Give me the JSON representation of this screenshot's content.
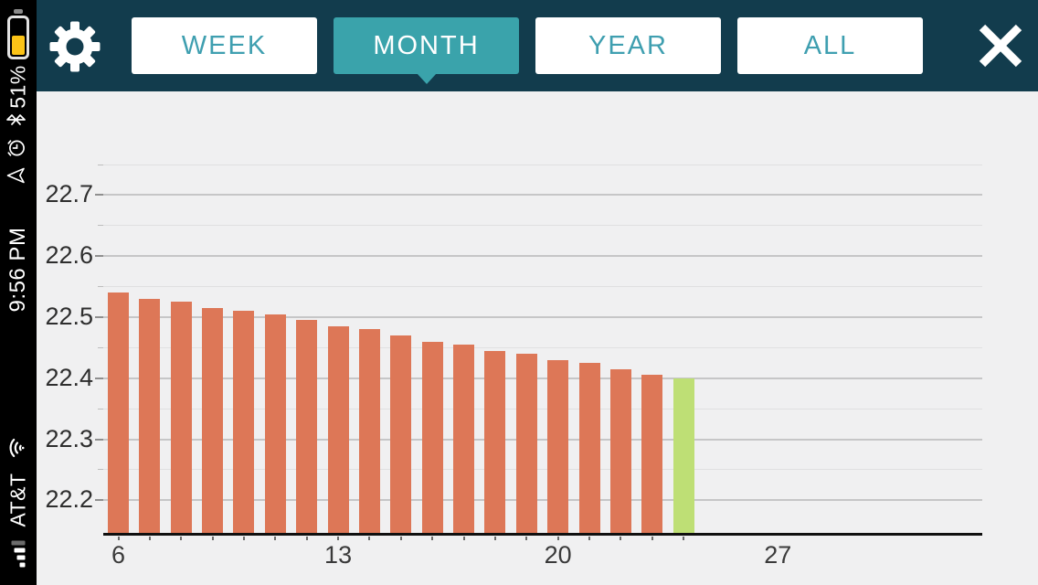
{
  "status_bar": {
    "battery_percent": "51%",
    "battery_fill_color": "#fcc417",
    "time": "9:56 PM",
    "carrier": "AT&T",
    "icons": [
      "battery-icon",
      "bluetooth-icon",
      "alarm-clock-icon",
      "location-arrow-icon",
      "wifi-icon",
      "signal-bars-icon"
    ],
    "signal_filled_bars": 3,
    "signal_total_bars": 4
  },
  "header": {
    "icons": [
      "settings-gear-icon",
      "close-icon"
    ],
    "colors": {
      "background": "#123c4d",
      "tab_text": "#3f9fb0",
      "tab_selected_bg": "#3aa3ab",
      "tab_bg": "#ffffff"
    },
    "tabs": [
      {
        "id": "week",
        "label": "WEEK",
        "selected": false
      },
      {
        "id": "month",
        "label": "MONTH",
        "selected": true
      },
      {
        "id": "year",
        "label": "YEAR",
        "selected": false
      },
      {
        "id": "all",
        "label": "ALL",
        "selected": false
      }
    ]
  },
  "chart_data": {
    "type": "bar",
    "title": "",
    "xlabel": "",
    "ylabel": "",
    "x": [
      6,
      7,
      8,
      9,
      10,
      11,
      12,
      13,
      14,
      15,
      16,
      17,
      18,
      19,
      20,
      21,
      22,
      23,
      24
    ],
    "values": [
      22.54,
      22.53,
      22.525,
      22.515,
      22.51,
      22.505,
      22.495,
      22.485,
      22.48,
      22.47,
      22.46,
      22.455,
      22.445,
      22.44,
      22.43,
      22.425,
      22.415,
      22.405,
      22.4
    ],
    "highlight_index": 18,
    "bar_colors": {
      "default": "#dd7757",
      "highlight": "#bedf75"
    },
    "xticks": [
      6,
      13,
      20,
      27
    ],
    "yticks_major": [
      22.2,
      22.3,
      22.4,
      22.5,
      22.6,
      22.7
    ],
    "yticks_minor": [
      22.25,
      22.35,
      22.45,
      22.55,
      22.65,
      22.75
    ],
    "ylim": [
      22.145,
      22.81
    ],
    "xlim": [
      5.5,
      33.5
    ],
    "grid": "horizontal major+minor, background #f0f0f1",
    "grid_colors": {
      "major": "#c6c6c7",
      "minor": "#e0e0e1"
    }
  }
}
